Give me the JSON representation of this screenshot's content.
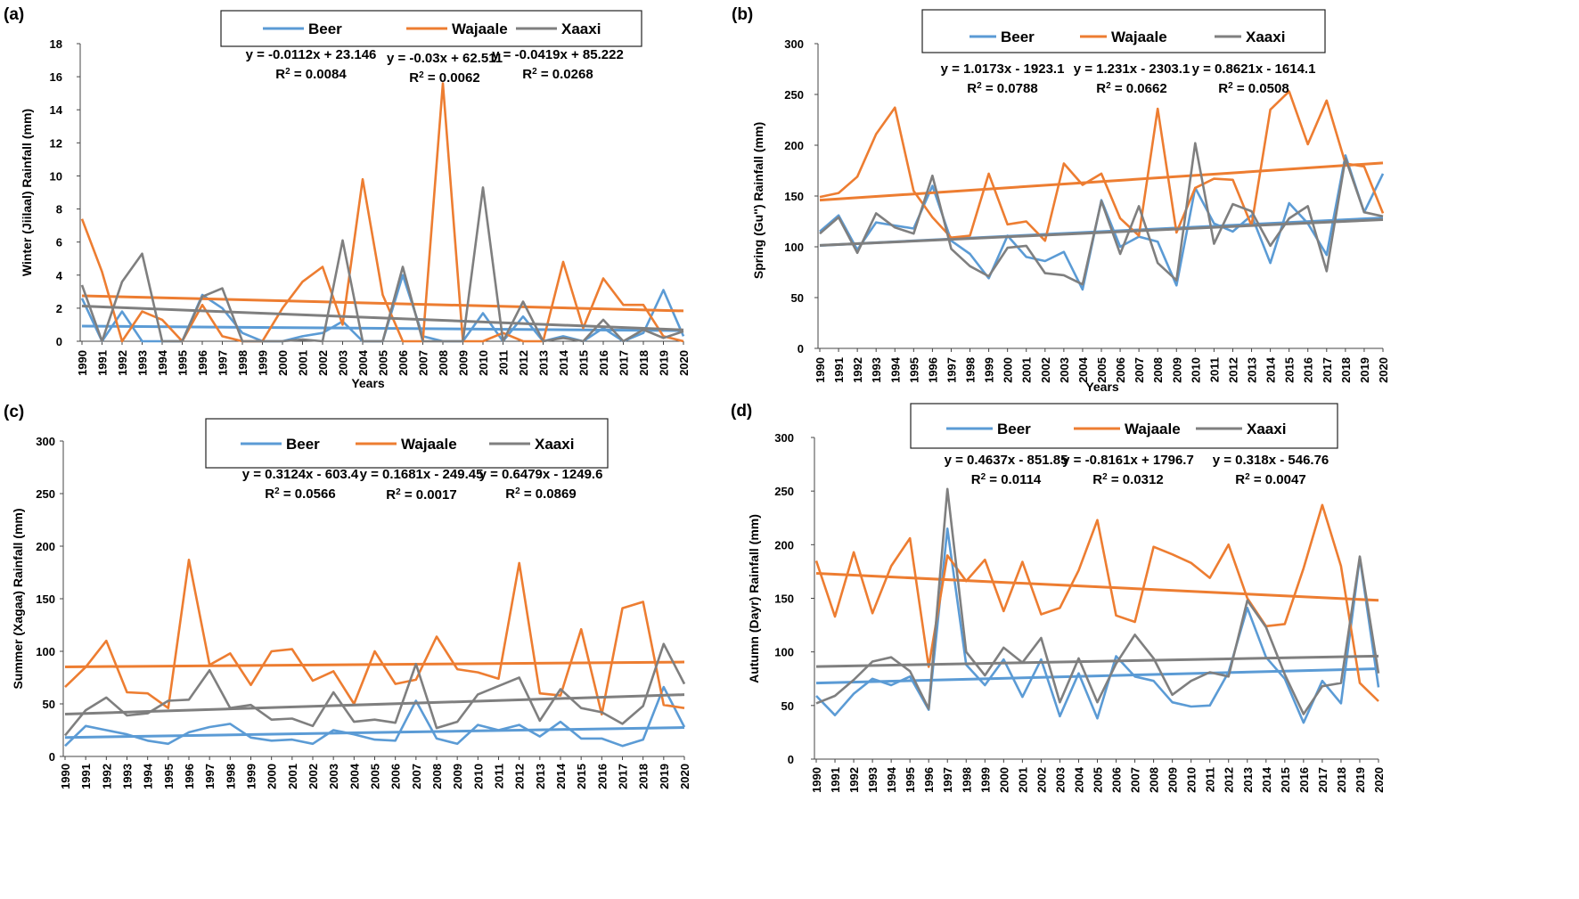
{
  "chart_data": [
    {
      "panel": "(a)",
      "type": "line",
      "ylabel": "Winter (Jiilaal) Rainfall (mm)",
      "xlabel": "Years",
      "ylim": [
        0,
        18
      ],
      "yticks": [
        0,
        2,
        4,
        6,
        8,
        10,
        12,
        14,
        16,
        18
      ],
      "x": [
        1990,
        1991,
        1992,
        1993,
        1994,
        1995,
        1996,
        1997,
        1998,
        1999,
        2000,
        2001,
        2002,
        2003,
        2004,
        2005,
        2006,
        2007,
        2008,
        2009,
        2010,
        2011,
        2012,
        2013,
        2014,
        2015,
        2016,
        2017,
        2018,
        2019,
        2020
      ],
      "series": [
        {
          "name": "Beer",
          "color": "#5b9bd5",
          "values": [
            2.6,
            0,
            1.8,
            0,
            0,
            0,
            2.8,
            2,
            0.5,
            0,
            0,
            0.3,
            0.5,
            1.2,
            0,
            0,
            4,
            0.3,
            0,
            0,
            1.7,
            0,
            1.5,
            0,
            0.3,
            0,
            0.8,
            0,
            0.5,
            3.1,
            0.3
          ]
        },
        {
          "name": "Wajaale",
          "color": "#ed7d31",
          "values": [
            7.4,
            4.2,
            0,
            1.8,
            1.3,
            0,
            2.2,
            0.3,
            0,
            0,
            2,
            3.6,
            4.5,
            1,
            9.8,
            2.8,
            0,
            0,
            15.6,
            0,
            0,
            0.5,
            0,
            0,
            4.8,
            0.8,
            3.8,
            2.2,
            2.2,
            0.3,
            0
          ]
        },
        {
          "name": "Xaaxi",
          "color": "#7f7f7f",
          "values": [
            3.4,
            0,
            3.6,
            5.3,
            0,
            0,
            2.7,
            3.2,
            0,
            0,
            0,
            0.1,
            0,
            6.1,
            0,
            0,
            4.5,
            0,
            0,
            0,
            9.3,
            0,
            2.4,
            0,
            0.2,
            0,
            1.3,
            0,
            0.7,
            0.2,
            0.6
          ]
        }
      ],
      "equations": [
        {
          "eq": "y = -0.0112x + 23.146",
          "r2": "0.0084"
        },
        {
          "eq": "y = -0.03x + 62.511",
          "r2": "0.0062"
        },
        {
          "eq": "y = -0.0419x + 85.222",
          "r2": "0.0268"
        }
      ],
      "trend_lines": true,
      "legend": "top-center",
      "grid": false
    },
    {
      "panel": "(b)",
      "type": "line",
      "ylabel": "Spring (Gu'') Rainfall (mm)",
      "xlabel": "Years",
      "ylim": [
        0,
        300
      ],
      "yticks": [
        0,
        50,
        100,
        150,
        200,
        250,
        300
      ],
      "x": [
        1990,
        1991,
        1992,
        1993,
        1994,
        1995,
        1996,
        1997,
        1998,
        1999,
        2000,
        2001,
        2002,
        2003,
        2004,
        2005,
        2006,
        2007,
        2008,
        2009,
        2010,
        2011,
        2012,
        2013,
        2014,
        2015,
        2016,
        2017,
        2018,
        2019,
        2020
      ],
      "series": [
        {
          "name": "Beer",
          "color": "#5b9bd5",
          "values": [
            115,
            131,
            97,
            124,
            121,
            118,
            160,
            106,
            93,
            69,
            111,
            90,
            86,
            95,
            58,
            146,
            100,
            110,
            105,
            62,
            158,
            123,
            115,
            131,
            84,
            143,
            123,
            92,
            190,
            134,
            172
          ]
        },
        {
          "name": "Wajaale",
          "color": "#ed7d31",
          "values": [
            149,
            153,
            169,
            211,
            237,
            155,
            129,
            109,
            111,
            172,
            122,
            125,
            106,
            182,
            161,
            172,
            128,
            111,
            236,
            114,
            158,
            167,
            166,
            121,
            235,
            253,
            201,
            244,
            182,
            179,
            133
          ]
        },
        {
          "name": "Xaaxi",
          "color": "#7f7f7f",
          "values": [
            113,
            129,
            94,
            133,
            119,
            113,
            170,
            98,
            81,
            71,
            99,
            101,
            74,
            72,
            63,
            145,
            93,
            140,
            84,
            67,
            202,
            103,
            142,
            135,
            101,
            128,
            140,
            76,
            187,
            134,
            130
          ]
        }
      ],
      "equations": [
        {
          "eq": "y = 1.0173x - 1923.1",
          "r2": "0.0788"
        },
        {
          "eq": "y = 1.231x - 2303.1",
          "r2": "0.0662"
        },
        {
          "eq": "y = 0.8621x - 1614.1",
          "r2": "0.0508"
        }
      ],
      "trend_lines": true,
      "legend": "top-center",
      "grid": false
    },
    {
      "panel": "(c)",
      "type": "line",
      "ylabel": "Summer (Xagaa)  Rainfall (mm)",
      "xlabel": "",
      "ylim": [
        0,
        300
      ],
      "yticks": [
        0,
        50,
        100,
        150,
        200,
        250,
        300
      ],
      "x": [
        1990,
        1991,
        1992,
        1993,
        1994,
        1995,
        1996,
        1997,
        1998,
        1999,
        2000,
        2001,
        2002,
        2003,
        2004,
        2005,
        2006,
        2007,
        2008,
        2009,
        2010,
        2011,
        2012,
        2013,
        2014,
        2015,
        2016,
        2017,
        2018,
        2019,
        2020
      ],
      "series": [
        {
          "name": "Beer",
          "color": "#5b9bd5",
          "values": [
            10,
            29,
            25,
            21,
            15,
            12,
            23,
            28,
            31,
            18,
            15,
            16,
            12,
            25,
            21,
            16,
            15,
            53,
            17,
            12,
            30,
            25,
            30,
            19,
            33,
            17,
            17,
            10,
            16,
            66,
            28
          ]
        },
        {
          "name": "Wajaale",
          "color": "#ed7d31",
          "values": [
            66,
            85,
            110,
            61,
            60,
            46,
            187,
            87,
            98,
            68,
            100,
            102,
            72,
            81,
            50,
            100,
            69,
            73,
            114,
            83,
            80,
            74,
            184,
            60,
            58,
            121,
            40,
            141,
            147,
            49,
            46
          ]
        },
        {
          "name": "Xaaxi",
          "color": "#7f7f7f",
          "values": [
            20,
            44,
            56,
            39,
            41,
            53,
            54,
            82,
            46,
            49,
            35,
            36,
            29,
            61,
            33,
            35,
            32,
            88,
            27,
            33,
            59,
            67,
            75,
            34,
            64,
            46,
            42,
            31,
            48,
            107,
            69
          ]
        }
      ],
      "equations": [
        {
          "eq": "y = 0.3124x - 603.4",
          "r2": "0.0566"
        },
        {
          "eq": "y = 0.1681x - 249.45",
          "r2": "0.0017"
        },
        {
          "eq": "y = 0.6479x - 1249.6",
          "r2": "0.0869"
        }
      ],
      "trend_lines": true,
      "legend": "top-center",
      "grid": false
    },
    {
      "panel": "(d)",
      "type": "line",
      "ylabel": "Autumn (Dayr) Rainfall (mm)",
      "xlabel": "",
      "ylim": [
        0,
        300
      ],
      "yticks": [
        0,
        50,
        100,
        150,
        200,
        250,
        300
      ],
      "x": [
        1990,
        1991,
        1992,
        1993,
        1994,
        1995,
        1996,
        1997,
        1998,
        1999,
        2000,
        2001,
        2002,
        2003,
        2004,
        2005,
        2006,
        2007,
        2008,
        2009,
        2010,
        2011,
        2012,
        2013,
        2014,
        2015,
        2016,
        2017,
        2018,
        2019,
        2020
      ],
      "series": [
        {
          "name": "Beer",
          "color": "#5b9bd5",
          "values": [
            59,
            41,
            61,
            75,
            69,
            77,
            46,
            215,
            88,
            69,
            93,
            58,
            93,
            40,
            80,
            38,
            96,
            77,
            73,
            53,
            49,
            50,
            81,
            141,
            95,
            75,
            34,
            73,
            52,
            188,
            67
          ]
        },
        {
          "name": "Wajaale",
          "color": "#ed7d31",
          "values": [
            185,
            133,
            193,
            136,
            180,
            206,
            86,
            190,
            166,
            186,
            138,
            184,
            135,
            141,
            176,
            223,
            134,
            128,
            198,
            191,
            183,
            169,
            200,
            150,
            124,
            126,
            178,
            237,
            180,
            71,
            54
          ]
        },
        {
          "name": "Xaaxi",
          "color": "#7f7f7f",
          "values": [
            52,
            59,
            74,
            91,
            95,
            82,
            47,
            252,
            100,
            78,
            104,
            90,
            113,
            53,
            94,
            53,
            89,
            116,
            94,
            60,
            73,
            81,
            77,
            148,
            123,
            79,
            42,
            68,
            71,
            189,
            80
          ]
        }
      ],
      "equations": [
        {
          "eq": "y = 0.4637x - 851.85",
          "r2": "0.0114"
        },
        {
          "eq": "y = -0.8161x + 1796.7",
          "r2": "0.0312"
        },
        {
          "eq": "y = 0.318x - 546.76",
          "r2": "0.0047"
        }
      ],
      "trend_lines": true,
      "legend": "top-center",
      "grid": false
    }
  ]
}
